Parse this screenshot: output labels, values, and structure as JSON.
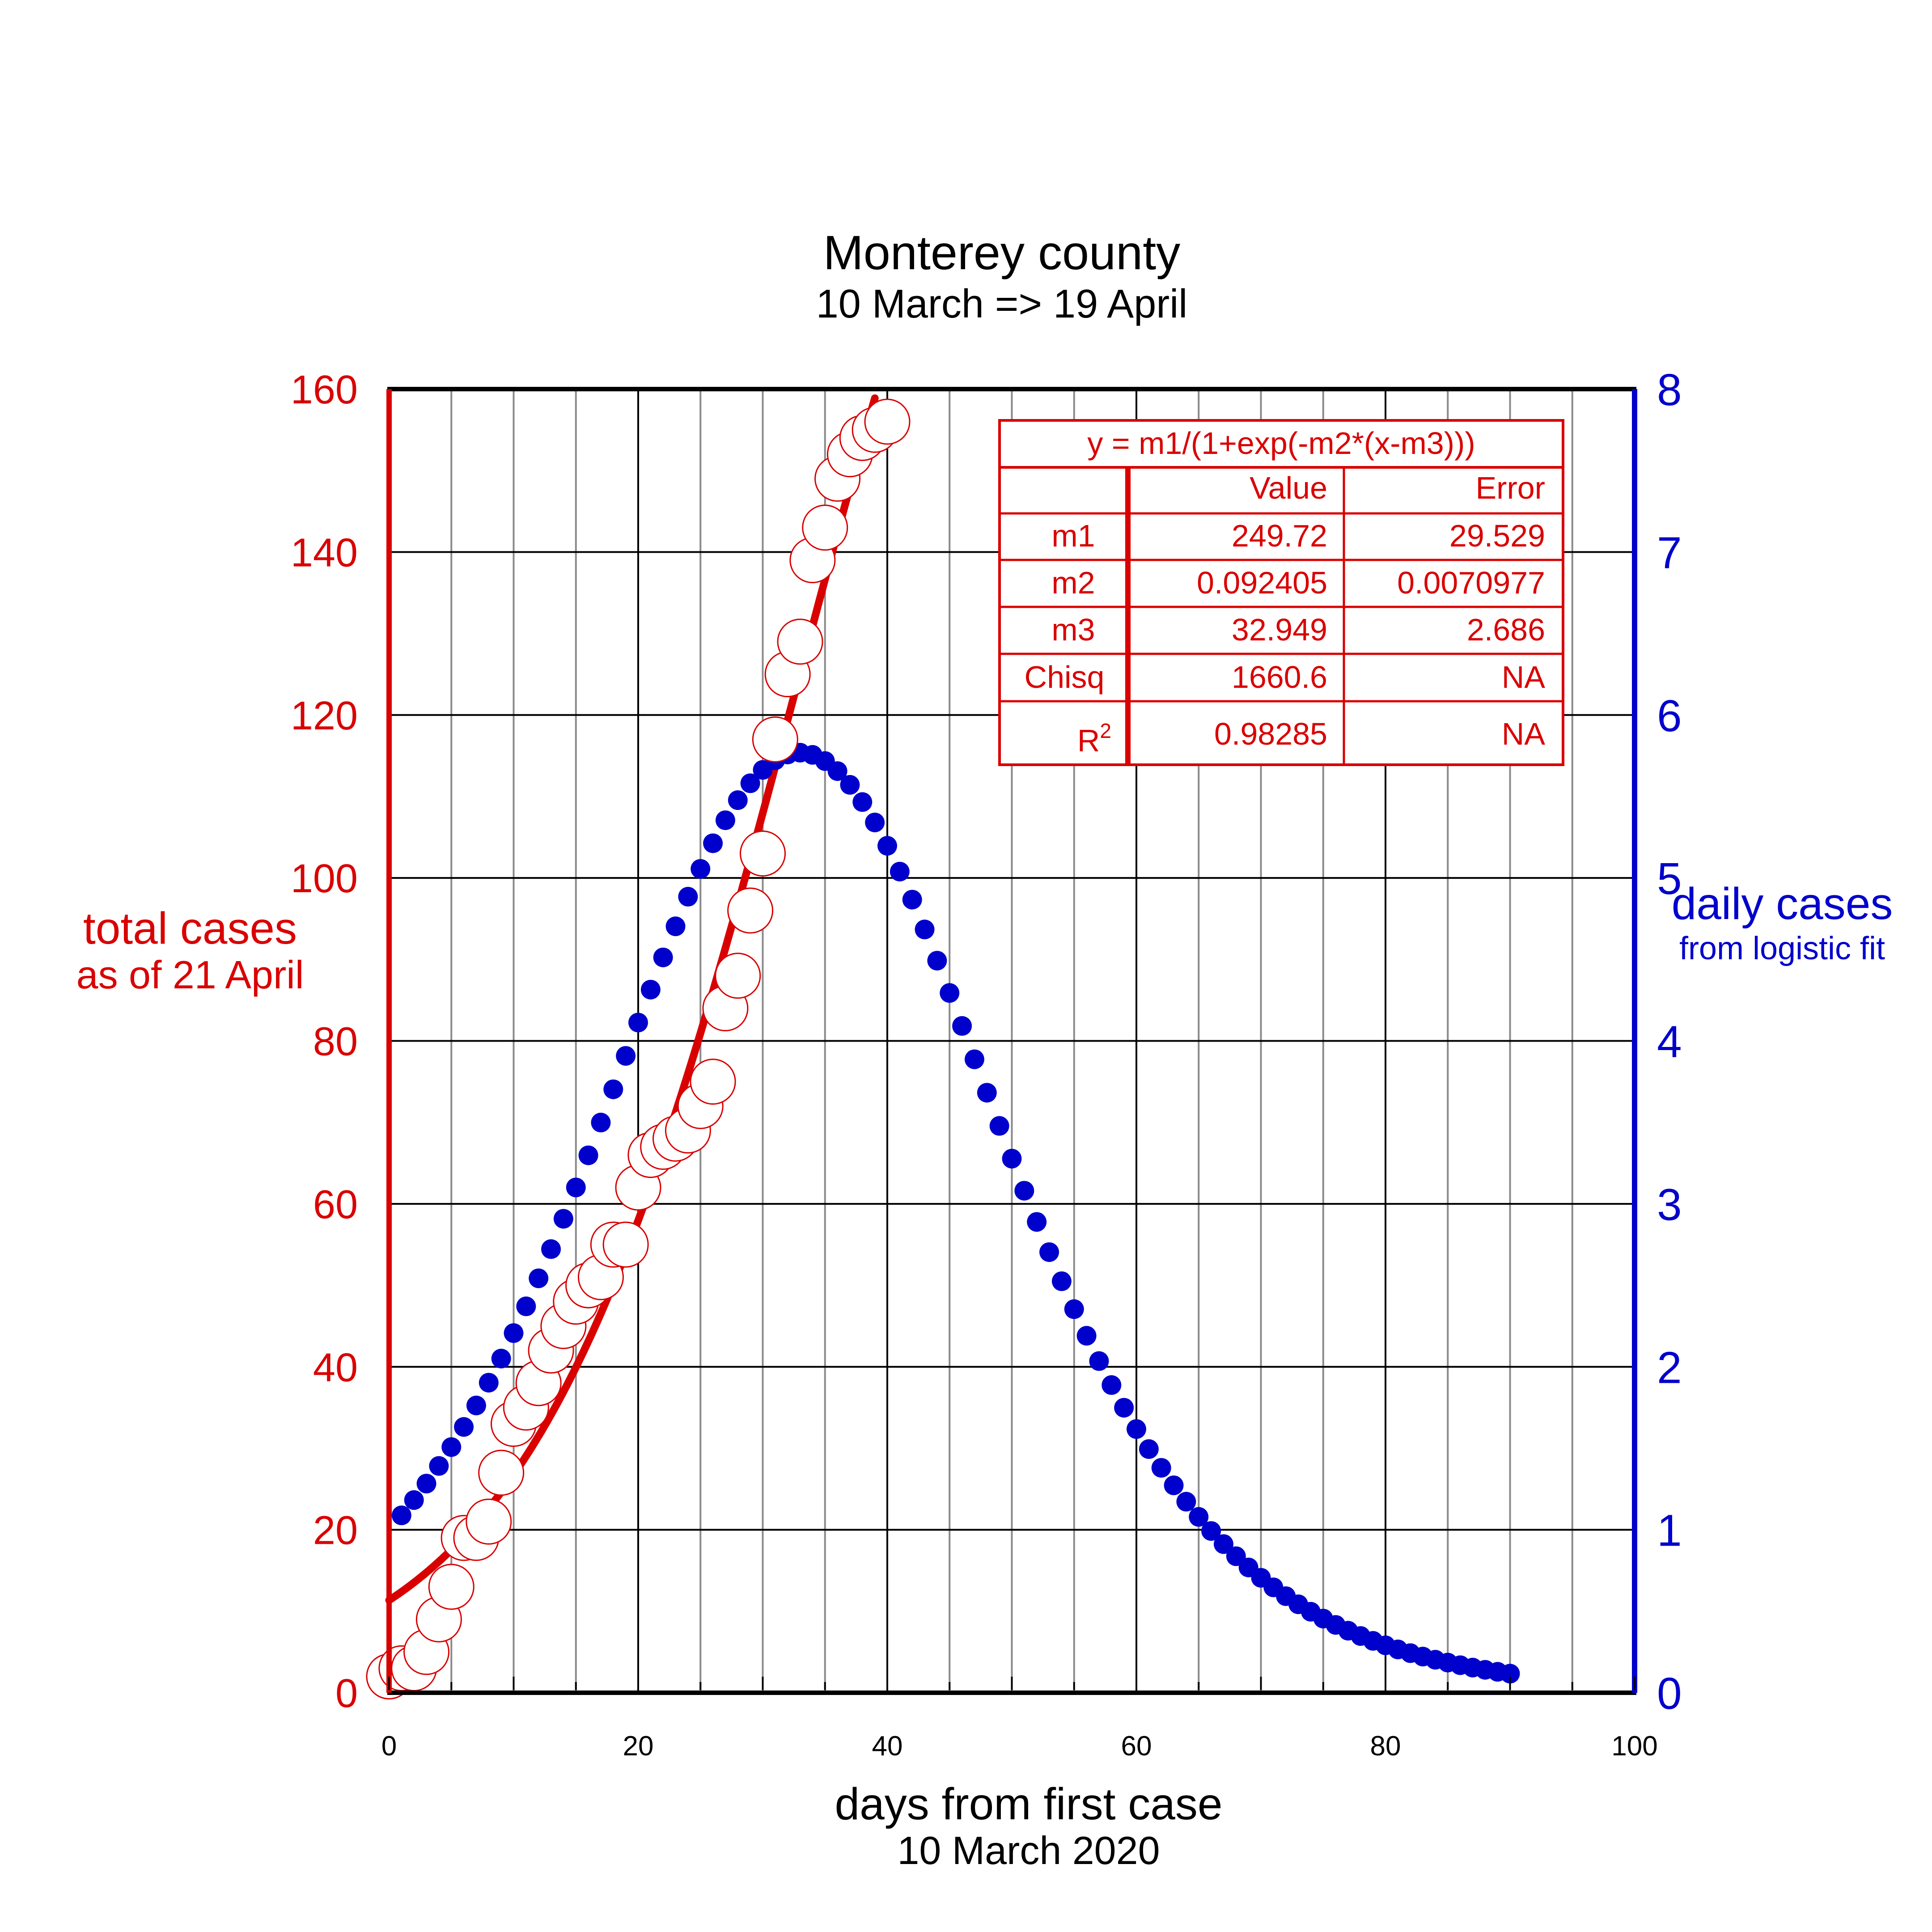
{
  "chart_data": {
    "type": "scatter",
    "title": "Monterey county",
    "subtitle": "10 March =>  19 April",
    "xlabel": "days from first case",
    "xlabel_sub": "10 March 2020",
    "ylabel_left": "total cases",
    "ylabel_left_sub": "as of 21 April",
    "ylabel_right": "daily cases",
    "ylabel_right_sub": "from logistic fit",
    "xlim": [
      0,
      100
    ],
    "ylim_left": [
      0,
      160
    ],
    "ylim_right": [
      0,
      8
    ],
    "x_ticks": [
      "0",
      "20",
      "40",
      "60",
      "80",
      "100"
    ],
    "y_left_ticks": [
      "0",
      "20",
      "40",
      "60",
      "80",
      "100",
      "120",
      "140",
      "160"
    ],
    "y_right_ticks": [
      "0",
      "1",
      "2",
      "3",
      "4",
      "5",
      "6",
      "7",
      "8"
    ],
    "grid": true,
    "colors": {
      "left_axis": "#d90000",
      "right_axis": "#0000cc",
      "grid": "#000000"
    },
    "series": [
      {
        "name": "total cases",
        "axis": "left",
        "marker": "open-circle",
        "color": "#d90000",
        "points": [
          [
            0,
            2
          ],
          [
            1,
            3
          ],
          [
            2,
            3
          ],
          [
            3,
            5
          ],
          [
            4,
            9
          ],
          [
            5,
            13
          ],
          [
            6,
            19
          ],
          [
            7,
            19
          ],
          [
            8,
            21
          ],
          [
            9,
            27
          ],
          [
            10,
            33
          ],
          [
            11,
            35
          ],
          [
            12,
            38
          ],
          [
            13,
            42
          ],
          [
            14,
            45
          ],
          [
            15,
            48
          ],
          [
            16,
            50
          ],
          [
            17,
            51
          ],
          [
            18,
            55
          ],
          [
            19,
            55
          ],
          [
            20,
            62
          ],
          [
            21,
            66
          ],
          [
            22,
            67
          ],
          [
            23,
            68
          ],
          [
            24,
            69
          ],
          [
            25,
            72
          ],
          [
            26,
            75
          ],
          [
            27,
            84
          ],
          [
            28,
            88
          ],
          [
            29,
            96
          ],
          [
            30,
            103
          ],
          [
            31,
            117
          ],
          [
            32,
            125
          ],
          [
            33,
            129
          ],
          [
            34,
            139
          ],
          [
            35,
            143
          ],
          [
            36,
            149
          ],
          [
            37,
            152
          ],
          [
            38,
            154
          ],
          [
            39,
            155
          ],
          [
            40,
            156
          ]
        ]
      },
      {
        "name": "daily cases",
        "axis": "right",
        "marker": "filled-dot",
        "color": "#0000cc",
        "x_range": [
          1,
          90
        ],
        "model": "logistic derivative"
      }
    ],
    "fit_curve": {
      "axis": "left",
      "color": "#d90000",
      "model": "y = m1/(1+exp(-m2*(x-m3)))",
      "x_range": [
        0,
        44
      ]
    },
    "fit_table": {
      "equation": "y = m1/(1+exp(-m2*(x-m3)))",
      "header": [
        "",
        "Value",
        "Error"
      ],
      "rows": [
        {
          "name": "m1",
          "value": "249.72",
          "error": "29.529"
        },
        {
          "name": "m2",
          "value": "0.092405",
          "error": "0.0070977"
        },
        {
          "name": "m3",
          "value": "32.949",
          "error": "2.686"
        },
        {
          "name": "Chisq",
          "value": "1660.6",
          "error": "NA"
        },
        {
          "name": "R",
          "sup": "2",
          "value": "0.98285",
          "error": "NA"
        }
      ],
      "params": {
        "m1": 249.72,
        "m2": 0.092405,
        "m3": 32.949
      }
    }
  }
}
